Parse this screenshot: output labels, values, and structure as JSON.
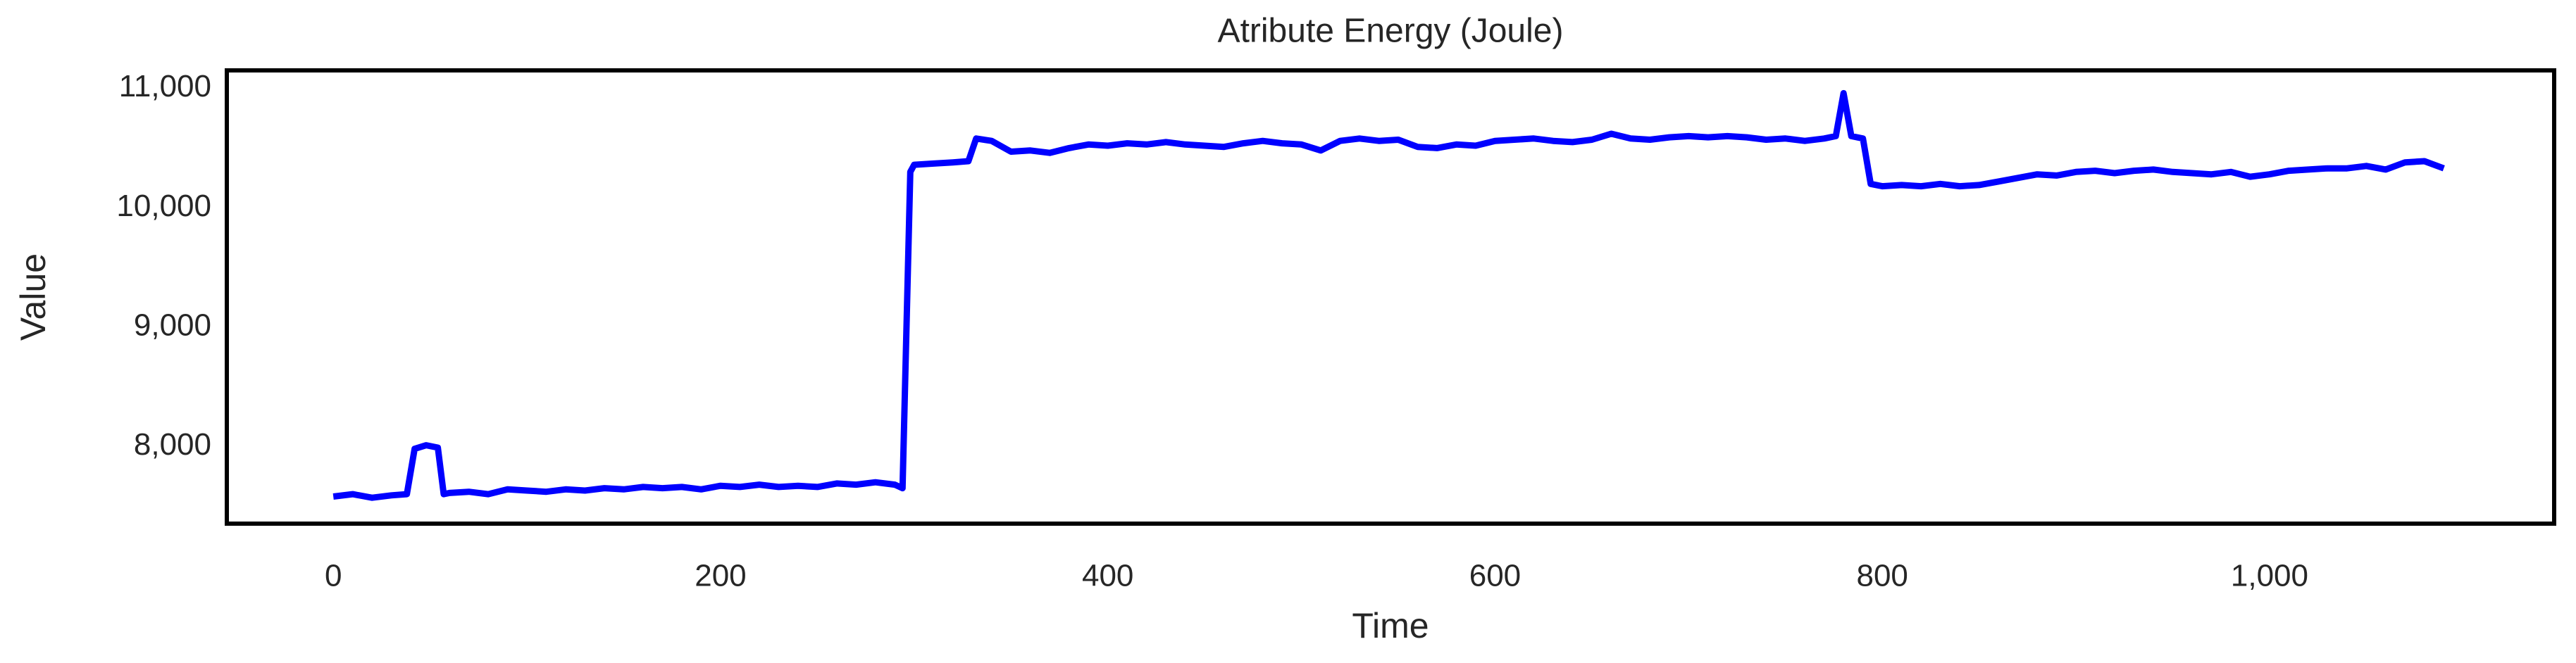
{
  "chart_data": {
    "type": "line",
    "title": "Atribute Energy (Joule)",
    "x_label": "Time",
    "y_label": "Value",
    "x": [
      0,
      10,
      20,
      30,
      38,
      42,
      48,
      54,
      57,
      60,
      70,
      80,
      90,
      100,
      110,
      120,
      130,
      140,
      150,
      160,
      170,
      180,
      190,
      200,
      210,
      220,
      230,
      240,
      250,
      260,
      270,
      280,
      290,
      294,
      298,
      300,
      310,
      320,
      328,
      332,
      340,
      350,
      360,
      370,
      380,
      390,
      400,
      410,
      420,
      430,
      440,
      450,
      460,
      470,
      480,
      490,
      500,
      510,
      520,
      530,
      540,
      550,
      560,
      570,
      580,
      590,
      600,
      610,
      620,
      630,
      640,
      650,
      660,
      670,
      680,
      690,
      700,
      710,
      720,
      730,
      740,
      750,
      760,
      770,
      776,
      780,
      784,
      790,
      794,
      800,
      810,
      820,
      830,
      840,
      850,
      860,
      870,
      880,
      890,
      900,
      910,
      920,
      930,
      940,
      950,
      960,
      970,
      980,
      990,
      1000,
      1010,
      1020,
      1030,
      1040,
      1050,
      1060,
      1070,
      1080,
      1090
    ],
    "series": [
      {
        "name": "Energy",
        "color": "#0000ff",
        "values": [
          7580,
          7600,
          7570,
          7590,
          7600,
          7980,
          8010,
          7990,
          7600,
          7610,
          7620,
          7600,
          7640,
          7630,
          7620,
          7640,
          7630,
          7650,
          7640,
          7660,
          7650,
          7660,
          7640,
          7670,
          7660,
          7680,
          7660,
          7670,
          7660,
          7690,
          7680,
          7700,
          7680,
          7650,
          10300,
          10360,
          10370,
          10380,
          10390,
          10580,
          10560,
          10470,
          10480,
          10460,
          10500,
          10530,
          10520,
          10540,
          10530,
          10550,
          10530,
          10520,
          10510,
          10540,
          10560,
          10540,
          10530,
          10480,
          10560,
          10580,
          10560,
          10570,
          10510,
          10500,
          10530,
          10520,
          10560,
          10570,
          10580,
          10560,
          10550,
          10570,
          10620,
          10580,
          10570,
          10590,
          10600,
          10590,
          10600,
          10590,
          10570,
          10580,
          10560,
          10580,
          10600,
          10960,
          10600,
          10580,
          10200,
          10180,
          10190,
          10180,
          10200,
          10180,
          10190,
          10220,
          10250,
          10280,
          10270,
          10300,
          10310,
          10290,
          10310,
          10320,
          10300,
          10290,
          10280,
          10300,
          10260,
          10280,
          10310,
          10320,
          10330,
          10330,
          10350,
          10320,
          10380,
          10390,
          10330
        ]
      }
    ],
    "xlim": [
      -55,
      1147
    ],
    "ylim": [
      7353,
      11151
    ],
    "xticks": [
      0,
      200,
      400,
      600,
      800,
      {
        "value": 1000,
        "label": "1,000"
      }
    ],
    "yticks": [
      {
        "value": 8000,
        "label": "8,000"
      },
      {
        "value": 9000,
        "label": "9,000"
      },
      {
        "value": 10000,
        "label": "10,000"
      },
      {
        "value": 11000,
        "label": "11,000"
      }
    ],
    "grid": false
  }
}
